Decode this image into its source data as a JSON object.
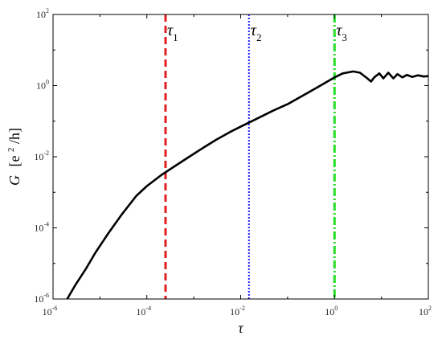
{
  "chart_data": {
    "type": "line",
    "x_scale": "log",
    "y_scale": "log",
    "xlim": [
      1e-06,
      100
    ],
    "ylim": [
      1e-06,
      100
    ],
    "xlabel": "τ",
    "ylabel": {
      "symbol": "G",
      "unit_prefix": "[e",
      "unit_power": "2",
      "unit_suffix": "/h]"
    },
    "x_ticks": [
      {
        "base": "10",
        "exp": "-6",
        "value": 1e-06
      },
      {
        "base": "10",
        "exp": "-4",
        "value": 0.0001
      },
      {
        "base": "10",
        "exp": "-2",
        "value": 0.01
      },
      {
        "base": "10",
        "exp": "0",
        "value": 1
      },
      {
        "base": "10",
        "exp": "2",
        "value": 100
      }
    ],
    "y_ticks": [
      {
        "base": "10",
        "exp": "-6",
        "value": 1e-06
      },
      {
        "base": "10",
        "exp": "-4",
        "value": 0.0001
      },
      {
        "base": "10",
        "exp": "-2",
        "value": 0.01
      },
      {
        "base": "10",
        "exp": "0",
        "value": 1
      },
      {
        "base": "10",
        "exp": "2",
        "value": 100
      }
    ],
    "grid": false,
    "series": [
      {
        "color": "#000000",
        "style": "solid",
        "points": [
          [
            2e-06,
            1e-06
          ],
          [
            3e-06,
            2.5e-06
          ],
          [
            5e-06,
            7e-06
          ],
          [
            8e-06,
            2e-05
          ],
          [
            1.5e-05,
            7e-05
          ],
          [
            3e-05,
            0.00025
          ],
          [
            6e-05,
            0.0008
          ],
          [
            0.0001,
            0.0015
          ],
          [
            0.0002,
            0.003
          ],
          [
            0.0004,
            0.0055
          ],
          [
            0.0008,
            0.01
          ],
          [
            0.0015,
            0.017
          ],
          [
            0.003,
            0.03
          ],
          [
            0.006,
            0.05
          ],
          [
            0.01,
            0.07
          ],
          [
            0.02,
            0.11
          ],
          [
            0.05,
            0.2
          ],
          [
            0.1,
            0.3
          ],
          [
            0.2,
            0.5
          ],
          [
            0.5,
            1.0
          ],
          [
            1,
            1.7
          ],
          [
            1.5,
            2.2
          ],
          [
            2.5,
            2.5
          ],
          [
            3.5,
            2.3
          ],
          [
            5,
            1.6
          ],
          [
            6,
            1.3
          ],
          [
            7,
            1.7
          ],
          [
            9,
            2.2
          ],
          [
            11,
            1.6
          ],
          [
            14,
            2.3
          ],
          [
            18,
            1.6
          ],
          [
            22,
            2.1
          ],
          [
            28,
            1.7
          ],
          [
            35,
            2.0
          ],
          [
            45,
            1.75
          ],
          [
            60,
            1.95
          ],
          [
            80,
            1.8
          ],
          [
            100,
            1.85
          ]
        ]
      }
    ],
    "reference_lines": [
      {
        "x": 0.00025,
        "color": "#e02020",
        "style": "dashed",
        "label_symbol": "τ",
        "label_sub": "1"
      },
      {
        "x": 0.015,
        "color": "#1a1aff",
        "style": "dotted",
        "label_symbol": "τ",
        "label_sub": "2"
      },
      {
        "x": 1,
        "color": "#22dd22",
        "style": "dashdot",
        "label_symbol": "τ",
        "label_sub": "3"
      }
    ]
  }
}
